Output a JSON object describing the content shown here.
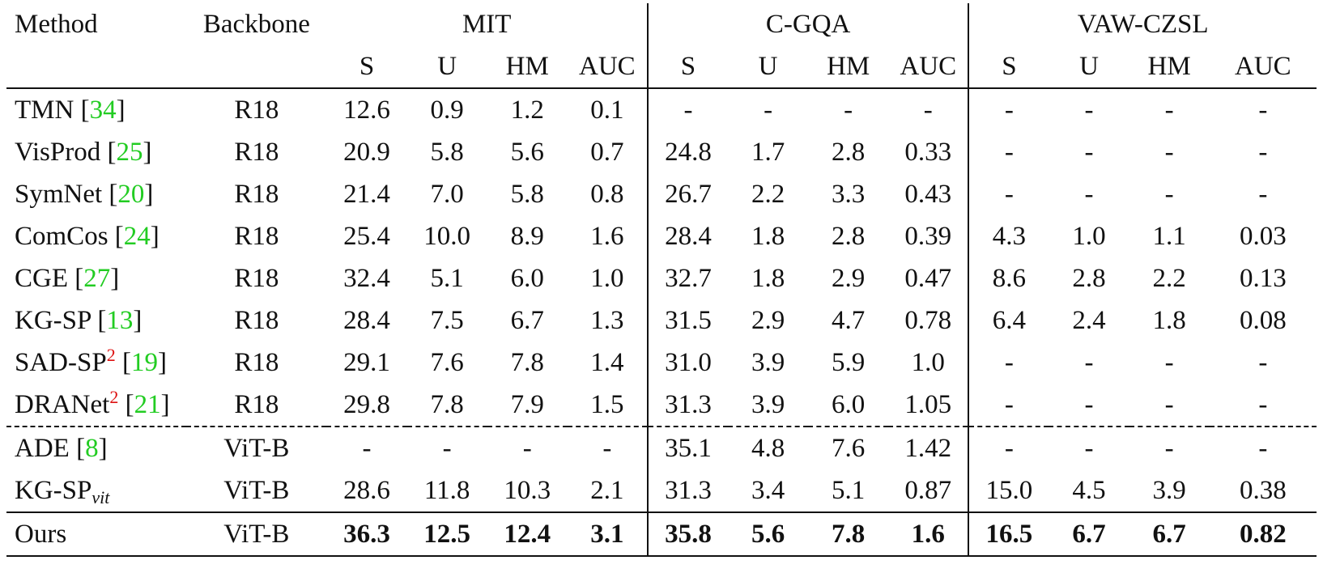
{
  "header": {
    "method": "Method",
    "backbone": "Backbone",
    "datasets": [
      "MIT",
      "C-GQA",
      "VAW-CZSL"
    ],
    "metrics": [
      "S",
      "U",
      "HM",
      "AUC"
    ]
  },
  "rows": [
    {
      "method": "TMN",
      "sup": "",
      "sub": "",
      "cite": "34",
      "backbone": "R18",
      "values": [
        "12.6",
        "0.9",
        "1.2",
        "0.1",
        "-",
        "-",
        "-",
        "-",
        "-",
        "-",
        "-",
        "-"
      ]
    },
    {
      "method": "VisProd",
      "sup": "",
      "sub": "",
      "cite": "25",
      "backbone": "R18",
      "values": [
        "20.9",
        "5.8",
        "5.6",
        "0.7",
        "24.8",
        "1.7",
        "2.8",
        "0.33",
        "-",
        "-",
        "-",
        "-"
      ]
    },
    {
      "method": "SymNet",
      "sup": "",
      "sub": "",
      "cite": "20",
      "backbone": "R18",
      "values": [
        "21.4",
        "7.0",
        "5.8",
        "0.8",
        "26.7",
        "2.2",
        "3.3",
        "0.43",
        "-",
        "-",
        "-",
        "-"
      ]
    },
    {
      "method": "ComCos",
      "sup": "",
      "sub": "",
      "cite": "24",
      "backbone": "R18",
      "values": [
        "25.4",
        "10.0",
        "8.9",
        "1.6",
        "28.4",
        "1.8",
        "2.8",
        "0.39",
        "4.3",
        "1.0",
        "1.1",
        "0.03"
      ]
    },
    {
      "method": "CGE",
      "sup": "",
      "sub": "",
      "cite": "27",
      "backbone": "R18",
      "values": [
        "32.4",
        "5.1",
        "6.0",
        "1.0",
        "32.7",
        "1.8",
        "2.9",
        "0.47",
        "8.6",
        "2.8",
        "2.2",
        "0.13"
      ]
    },
    {
      "method": "KG-SP",
      "sup": "",
      "sub": "",
      "cite": "13",
      "backbone": "R18",
      "values": [
        "28.4",
        "7.5",
        "6.7",
        "1.3",
        "31.5",
        "2.9",
        "4.7",
        "0.78",
        "6.4",
        "2.4",
        "1.8",
        "0.08"
      ]
    },
    {
      "method": "SAD-SP",
      "sup": "2",
      "sub": "",
      "cite": "19",
      "backbone": "R18",
      "values": [
        "29.1",
        "7.6",
        "7.8",
        "1.4",
        "31.0",
        "3.9",
        "5.9",
        "1.0",
        "-",
        "-",
        "-",
        "-"
      ]
    },
    {
      "method": "DRANet",
      "sup": "2",
      "sub": "",
      "cite": "21",
      "backbone": "R18",
      "values": [
        "29.8",
        "7.8",
        "7.9",
        "1.5",
        "31.3",
        "3.9",
        "6.0",
        "1.05",
        "-",
        "-",
        "-",
        "-"
      ]
    },
    {
      "method": "ADE",
      "sup": "",
      "sub": "",
      "cite": "8",
      "backbone": "ViT-B",
      "values": [
        "-",
        "-",
        "-",
        "-",
        "35.1",
        "4.8",
        "7.6",
        "1.42",
        "-",
        "-",
        "-",
        "-"
      ]
    },
    {
      "method": "KG-SP",
      "sup": "",
      "sub": "vit",
      "cite": "",
      "backbone": "ViT-B",
      "values": [
        "28.6",
        "11.8",
        "10.3",
        "2.1",
        "31.3",
        "3.4",
        "5.1",
        "0.87",
        "15.0",
        "4.5",
        "3.9",
        "0.38"
      ]
    },
    {
      "method": "Ours",
      "sup": "",
      "sub": "",
      "cite": "",
      "backbone": "ViT-B",
      "values": [
        "36.3",
        "12.5",
        "12.4",
        "3.1",
        "35.8",
        "5.6",
        "7.8",
        "1.6",
        "16.5",
        "6.7",
        "6.7",
        "0.82"
      ]
    }
  ],
  "bold_rows": [
    10
  ]
}
